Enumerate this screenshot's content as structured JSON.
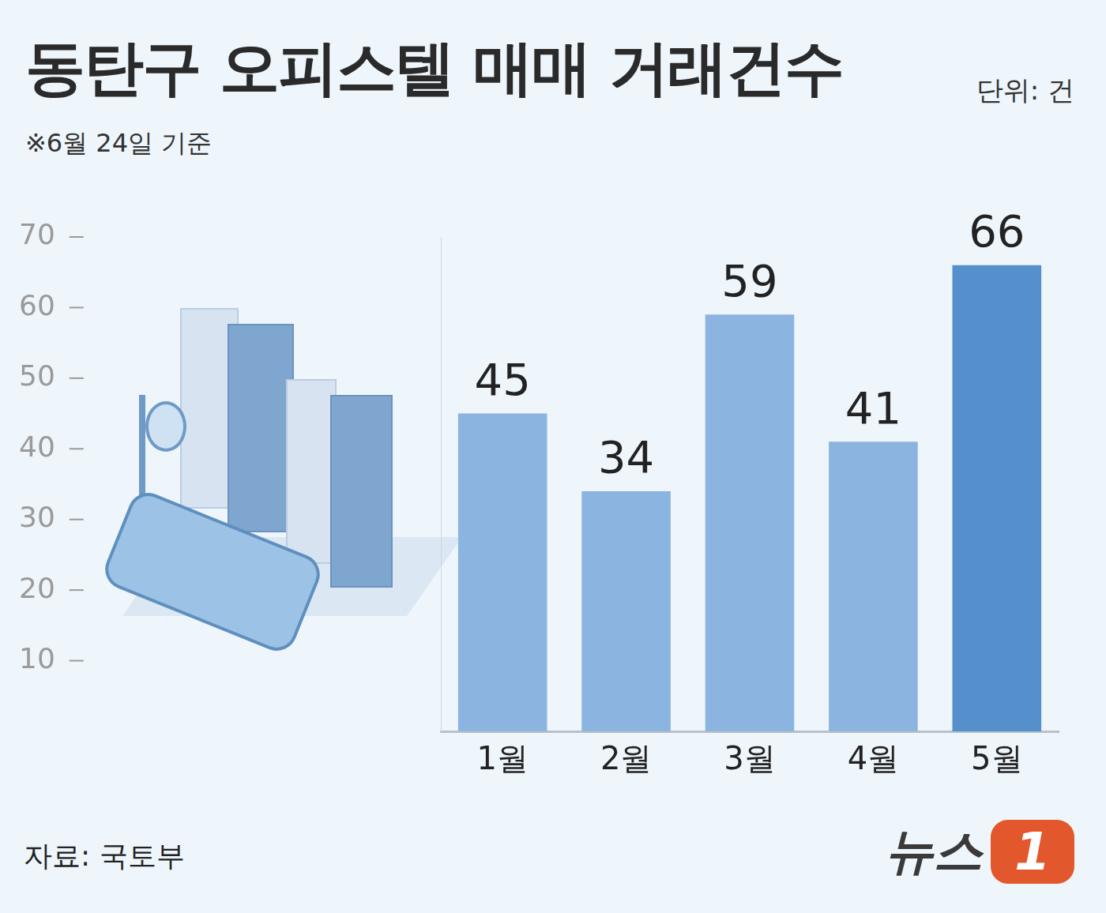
{
  "chart_data": {
    "type": "bar",
    "title": "동탄구 오피스텔 매매 거래건수",
    "unit": "단위: 건",
    "note": "※6월 24일 기준",
    "source": "자료: 국토부",
    "logo": "뉴스1",
    "categories": [
      "1월",
      "2월",
      "3월",
      "4월",
      "5월"
    ],
    "values": [
      45,
      34,
      59,
      41,
      66
    ],
    "colors": [
      "#8cb4e0",
      "#8cb4e0",
      "#8cb4e0",
      "#8cb4e0",
      "#5590cc"
    ],
    "ylim": [
      0,
      70
    ],
    "yticks": [
      10,
      20,
      30,
      40,
      50,
      60,
      70
    ],
    "grid": false,
    "data_labels": true
  }
}
